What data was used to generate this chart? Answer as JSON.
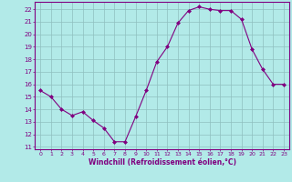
{
  "x": [
    0,
    1,
    2,
    3,
    4,
    5,
    6,
    7,
    8,
    9,
    10,
    11,
    12,
    13,
    14,
    15,
    16,
    17,
    18,
    19,
    20,
    21,
    22,
    23
  ],
  "y": [
    15.5,
    15.0,
    14.0,
    13.5,
    13.8,
    13.1,
    12.5,
    11.4,
    11.4,
    13.4,
    15.5,
    17.8,
    19.0,
    20.9,
    21.9,
    22.2,
    22.0,
    21.9,
    21.9,
    21.2,
    18.8,
    17.2,
    16.0,
    16.0
  ],
  "line_color": "#800080",
  "marker": "D",
  "marker_size": 2,
  "bg_color": "#b2eae8",
  "grid_color": "#8fbfbf",
  "xlabel": "Windchill (Refroidissement éolien,°C)",
  "xlabel_color": "#800080",
  "ylabel_ticks": [
    11,
    12,
    13,
    14,
    15,
    16,
    17,
    18,
    19,
    20,
    21,
    22
  ],
  "xticks": [
    0,
    1,
    2,
    3,
    4,
    5,
    6,
    7,
    8,
    9,
    10,
    11,
    12,
    13,
    14,
    15,
    16,
    17,
    18,
    19,
    20,
    21,
    22,
    23
  ],
  "ylim": [
    10.8,
    22.6
  ],
  "xlim": [
    -0.5,
    23.5
  ],
  "tick_color": "#800080",
  "spine_color": "#800080"
}
